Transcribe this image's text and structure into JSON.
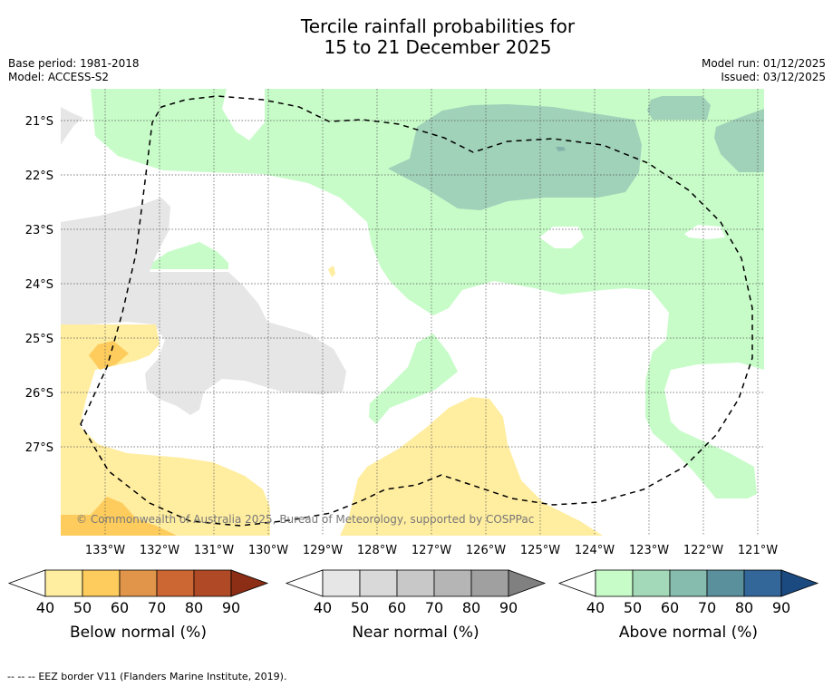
{
  "title": [
    "Tercile rainfall probabilities for",
    "15 to 21 December 2025"
  ],
  "meta_left": [
    "Base period: 1981-2018",
    "Model: ACCESS-S2"
  ],
  "meta_right": [
    "Model run: 01/12/2025",
    "Issued: 03/12/2025"
  ],
  "map": {
    "lat_labels": [
      "21°S",
      "22°S",
      "23°S",
      "24°S",
      "25°S",
      "26°S",
      "27°S"
    ],
    "lon_labels": [
      "133°W",
      "132°W",
      "131°W",
      "130°W",
      "129°W",
      "128°W",
      "127°W",
      "126°W",
      "125°W",
      "124°W",
      "123°W",
      "122°W",
      "121°W"
    ],
    "copyright": "© Commonwealth of Australia 2025, Bureau of Meteorology, supported by COSPPac"
  },
  "colorbars": [
    {
      "label": "Below normal (%)",
      "ticks": [
        "40",
        "50",
        "60",
        "70",
        "80",
        "90"
      ],
      "colors": [
        "#ffffff",
        "#ffeda0",
        "#fecc5c",
        "#e0954a",
        "#cc6633",
        "#b04a26",
        "#8c2d15"
      ]
    },
    {
      "label": "Near normal (%)",
      "ticks": [
        "40",
        "50",
        "60",
        "70",
        "80",
        "90"
      ],
      "colors": [
        "#ffffff",
        "#e6e6e6",
        "#d9d9d9",
        "#c8c8c8",
        "#b5b5b5",
        "#a0a0a0",
        "#808080"
      ]
    },
    {
      "label": "Above normal (%)",
      "ticks": [
        "40",
        "50",
        "60",
        "70",
        "80",
        "90"
      ],
      "colors": [
        "#ffffff",
        "#c7fcc8",
        "#a3d9b8",
        "#85bcae",
        "#5a8f9c",
        "#336699",
        "#1a4a80"
      ]
    }
  ],
  "legend": {
    "symbol": "--  --  --",
    "text": "EEZ border V11 (Flanders Marine Institute, 2019)."
  }
}
